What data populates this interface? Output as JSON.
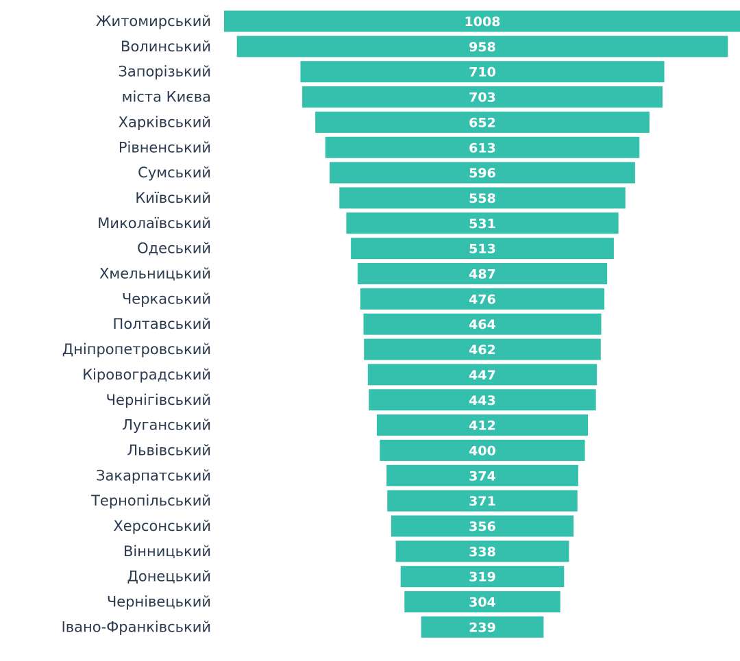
{
  "chart_data": {
    "type": "funnel",
    "color": "#35bfad",
    "categories": [
      "Житомирський",
      "Волинський",
      "Запорізький",
      "міста Києва",
      "Харківський",
      "Рівненський",
      "Сумський",
      "Київський",
      "Миколаївський",
      "Одеський",
      "Хмельницький",
      "Черкаський",
      "Полтавський",
      "Дніпропетровський",
      "Кіровоградський",
      "Чернігівський",
      "Луганський",
      "Львівський",
      "Закарпатський",
      "Тернопільський",
      "Херсонський",
      "Вінницький",
      "Донецький",
      "Чернівецький",
      "Івано-Франківський"
    ],
    "values": [
      1008,
      958,
      710,
      703,
      652,
      613,
      596,
      558,
      531,
      513,
      487,
      476,
      464,
      462,
      447,
      443,
      412,
      400,
      374,
      371,
      356,
      338,
      319,
      304,
      239
    ]
  }
}
